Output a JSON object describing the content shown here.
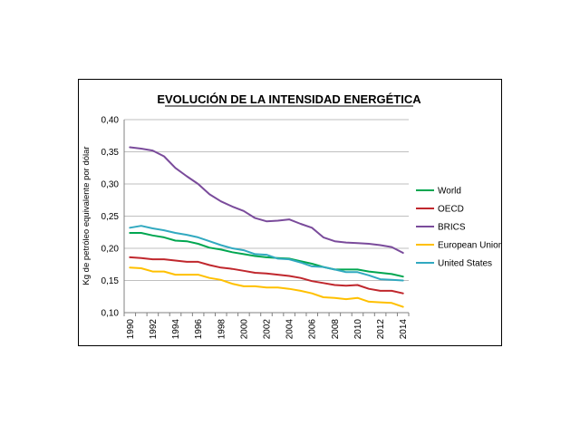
{
  "chart_data": {
    "type": "line",
    "title": "EVOLUCIÓN DE LA INTENSIDAD ENERGÉTICA",
    "xlabel": "",
    "ylabel": "Kg de petróleo equivalente por dólar",
    "x": [
      1990,
      1991,
      1992,
      1993,
      1994,
      1995,
      1996,
      1997,
      1998,
      1999,
      2000,
      2001,
      2002,
      2003,
      2004,
      2005,
      2006,
      2007,
      2008,
      2009,
      2010,
      2011,
      2012,
      2013,
      2014
    ],
    "x_ticks": [
      "1990",
      "1992",
      "1994",
      "1996",
      "1998",
      "2000",
      "2002",
      "2004",
      "2006",
      "2008",
      "2010",
      "2012",
      "2014"
    ],
    "ylim": [
      0.1,
      0.4
    ],
    "y_ticks": [
      "0,10",
      "0,15",
      "0,20",
      "0,25",
      "0,30",
      "0,35",
      "0,40"
    ],
    "grid": "horizontal",
    "legend_position": "right",
    "series": [
      {
        "name": "World",
        "color": "#00a650",
        "values": [
          0.224,
          0.224,
          0.22,
          0.217,
          0.212,
          0.211,
          0.207,
          0.201,
          0.198,
          0.194,
          0.191,
          0.188,
          0.186,
          0.185,
          0.184,
          0.18,
          0.176,
          0.171,
          0.167,
          0.167,
          0.167,
          0.164,
          0.162,
          0.16,
          0.156
        ]
      },
      {
        "name": "OECD",
        "color": "#c0272d",
        "values": [
          0.186,
          0.185,
          0.183,
          0.183,
          0.181,
          0.179,
          0.179,
          0.174,
          0.17,
          0.168,
          0.165,
          0.162,
          0.161,
          0.159,
          0.157,
          0.154,
          0.149,
          0.146,
          0.143,
          0.142,
          0.143,
          0.137,
          0.134,
          0.134,
          0.13
        ]
      },
      {
        "name": "BRICS",
        "color": "#7a4b9b",
        "values": [
          0.357,
          0.355,
          0.352,
          0.343,
          0.325,
          0.312,
          0.3,
          0.284,
          0.273,
          0.265,
          0.258,
          0.247,
          0.242,
          0.243,
          0.245,
          0.238,
          0.232,
          0.217,
          0.211,
          0.209,
          0.208,
          0.207,
          0.205,
          0.202,
          0.193
        ]
      },
      {
        "name": "European Union",
        "color": "#ffc000",
        "values": [
          0.17,
          0.169,
          0.164,
          0.164,
          0.159,
          0.159,
          0.159,
          0.154,
          0.151,
          0.145,
          0.141,
          0.141,
          0.139,
          0.139,
          0.137,
          0.134,
          0.13,
          0.124,
          0.123,
          0.121,
          0.123,
          0.117,
          0.116,
          0.115,
          0.109
        ]
      },
      {
        "name": "United States",
        "color": "#31a9c0",
        "values": [
          0.232,
          0.235,
          0.231,
          0.228,
          0.224,
          0.221,
          0.217,
          0.211,
          0.205,
          0.2,
          0.197,
          0.191,
          0.19,
          0.184,
          0.183,
          0.178,
          0.172,
          0.171,
          0.167,
          0.163,
          0.163,
          0.158,
          0.152,
          0.151,
          0.15
        ]
      }
    ]
  }
}
